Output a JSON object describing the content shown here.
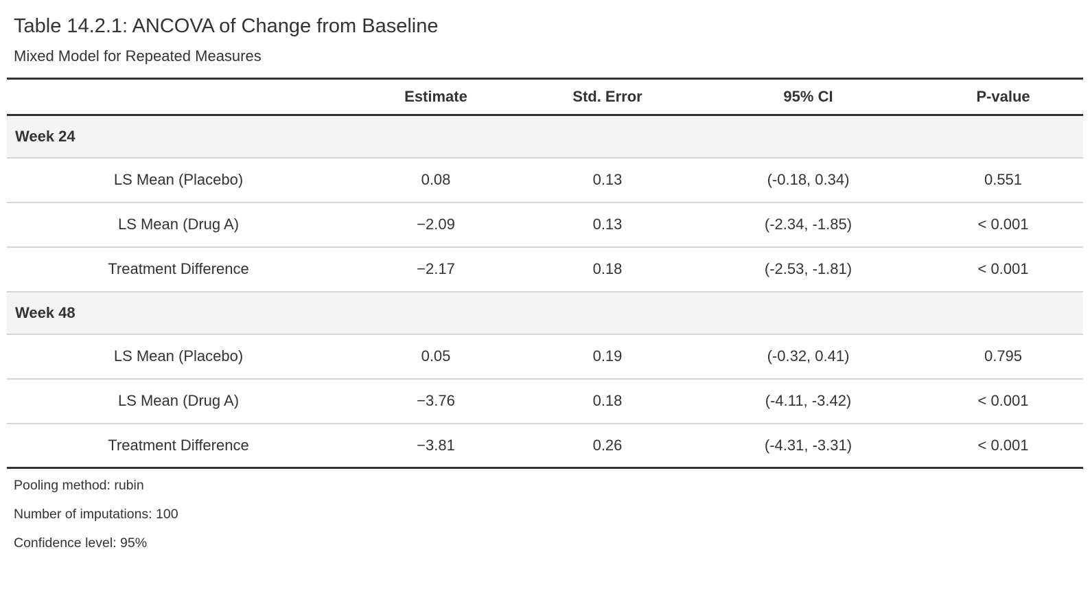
{
  "header": {
    "title": "Table 14.2.1: ANCOVA of Change from Baseline",
    "subtitle": "Mixed Model for Repeated Measures"
  },
  "table": {
    "columns": {
      "stub": "",
      "estimate": "Estimate",
      "std_error": "Std. Error",
      "ci": "95% CI",
      "p_value": "P-value"
    },
    "sections": [
      {
        "group": "Week 24",
        "rows": [
          {
            "label": "LS Mean (Placebo)",
            "estimate": "0.08",
            "std_error": "0.13",
            "ci": "(-0.18, 0.34)",
            "p_value": "0.551"
          },
          {
            "label": "LS Mean (Drug A)",
            "estimate": "−2.09",
            "std_error": "0.13",
            "ci": "(-2.34, -1.85)",
            "p_value": "< 0.001"
          },
          {
            "label": "Treatment Difference",
            "estimate": "−2.17",
            "std_error": "0.18",
            "ci": "(-2.53, -1.81)",
            "p_value": "< 0.001"
          }
        ]
      },
      {
        "group": "Week 48",
        "rows": [
          {
            "label": "LS Mean (Placebo)",
            "estimate": "0.05",
            "std_error": "0.19",
            "ci": "(-0.32, 0.41)",
            "p_value": "0.795"
          },
          {
            "label": "LS Mean (Drug A)",
            "estimate": "−3.76",
            "std_error": "0.18",
            "ci": "(-4.11, -3.42)",
            "p_value": "< 0.001"
          },
          {
            "label": "Treatment Difference",
            "estimate": "−3.81",
            "std_error": "0.26",
            "ci": "(-4.31, -3.31)",
            "p_value": "< 0.001"
          }
        ]
      }
    ]
  },
  "footnotes": [
    "Pooling method: rubin",
    "Number of imputations: 100",
    "Confidence level: 95%"
  ],
  "colors": {
    "text": "#333333",
    "border_dark": "#333333",
    "border_light": "#d6d6d6",
    "group_row_bg": "#f4f4f4",
    "background": "#ffffff"
  }
}
